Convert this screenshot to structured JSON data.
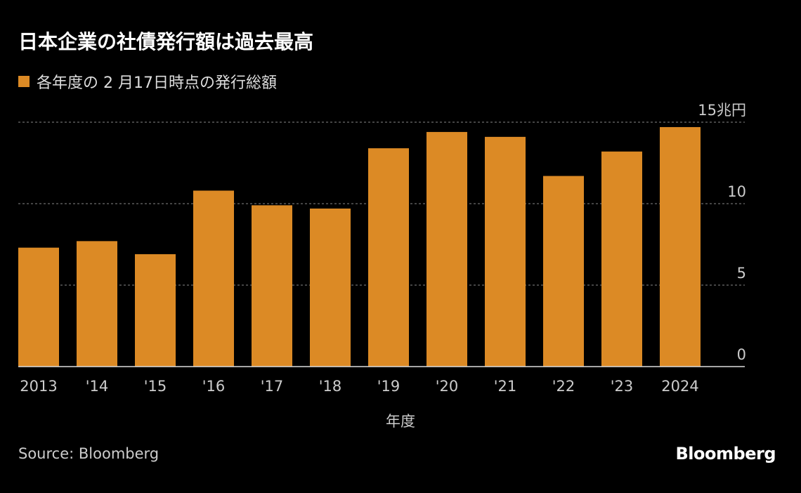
{
  "title": "日本企業の社債発行額は過去最高",
  "source": "Source: Bloomberg",
  "logo": "Bloomberg",
  "colors": {
    "bar": "#dc8a25",
    "background": "#000000",
    "grid": "#888888"
  },
  "chart_data": {
    "type": "bar",
    "title": "日本企業の社債発行額は過去最高",
    "legend": [
      {
        "name": "各年度の 2 月17日時点の発行総額",
        "color": "#dc8a25"
      }
    ],
    "legend_position": "top-left",
    "categories": [
      "2013",
      "'14",
      "'15",
      "'16",
      "'17",
      "'18",
      "'19",
      "'20",
      "'21",
      "'22",
      "'23",
      "2024"
    ],
    "series": [
      {
        "name": "各年度の 2 月17日時点の発行総額",
        "values": [
          7.3,
          7.7,
          6.9,
          10.8,
          9.9,
          9.7,
          13.4,
          14.4,
          14.1,
          11.7,
          13.2,
          14.7
        ]
      }
    ],
    "xlabel": "年度",
    "ylabel": "",
    "ylim": [
      0,
      15
    ],
    "yticks": [
      0,
      5,
      10,
      15
    ],
    "ytick_labels": [
      "0",
      "5",
      "10",
      "15兆円"
    ],
    "y_axis_side": "right",
    "grid": true
  }
}
